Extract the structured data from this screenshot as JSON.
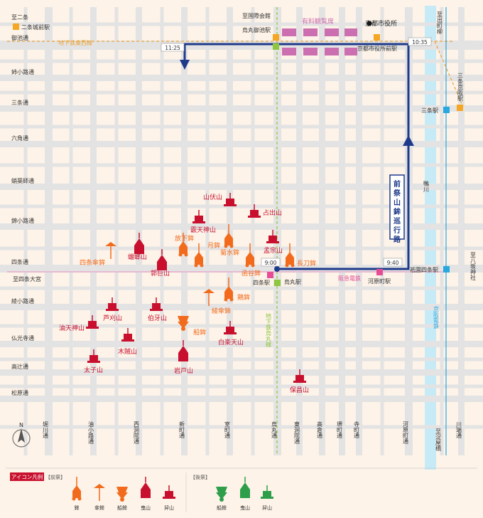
{
  "title": "前祭山鉾巡行路",
  "colors": {
    "background": "#fdf3e8",
    "street": "#e3e3e3",
    "route": "#1e3a8a",
    "river": "#c7eaf7",
    "hoko": "#f26b1d",
    "yama": "#c8102e",
    "ato": "#2e9e4a",
    "subway": "#e8a33d",
    "karasuma_line": "#8dc63f",
    "hankyu": "#e9a0c4",
    "gallery": "#cc6fb0"
  },
  "streets_horizontal": [
    "御池通",
    "姉小路通",
    "三条通",
    "六角通",
    "蛸薬師通",
    "錦小路通",
    "四条通",
    "綾小路通",
    "仏光寺通",
    "高辻通",
    "松原通"
  ],
  "streets_vertical": [
    "堀川通",
    "油小路通",
    "西洞院通",
    "新町通",
    "室町通",
    "烏丸通",
    "東洞院通",
    "高倉通",
    "堺町通",
    "寺町通",
    "河原町通",
    "川端通"
  ],
  "street_notes": {
    "shijo_omiya": "至四条大宮",
    "kamogawa": "鴨川",
    "to_kokusai": "至国際会館"
  },
  "stations": {
    "nijo_top": "至二条",
    "nijojo": "二条城前駅",
    "tozai_line": "地下鉄東西線",
    "karasuma_oike": "烏丸御池駅",
    "kyoto_city_hall": "京都市役所",
    "shiyakusho_mae": "京都市役所前駅",
    "demachi": "至出町柳",
    "sanjo_keihan": "三条京阪駅",
    "sanjo": "三条駅",
    "shijo": "四条駅",
    "karasuma": "烏丸駅",
    "hankyu": "阪急電鉄",
    "kawaramachi": "河原町駅",
    "gion_shijo": "祇園四条駅",
    "keihan": "京阪電鉄",
    "yasaka": "至八坂神社",
    "karasuma_line": "地下鉄烏丸線",
    "yodoyabashi": "至淀屋橋"
  },
  "paid_seats": "有料観覧席",
  "route_times": {
    "start": "9:00",
    "kawaramachi": "9:40",
    "kyoto_hall": "10:35",
    "shinmachi_oike": "11:25"
  },
  "floats": {
    "hoko": [
      "長刀鉾",
      "函谷鉾",
      "菊水鉾",
      "月鉾",
      "鶏鉾",
      "放下鉾",
      "船鉾"
    ],
    "kasa": [
      "四条傘鉾",
      "綾傘鉾"
    ],
    "yama": [
      "孟宗山",
      "占出山",
      "山伏山",
      "霰天神山",
      "蟷螂山",
      "郭巨山",
      "白楽天山",
      "伯牙山",
      "芦刈山",
      "油天神山",
      "木賊山",
      "太子山",
      "保昌山",
      "岩戸山"
    ]
  },
  "legend": {
    "title": "アイコン凡例",
    "saki_label": "【前祭】",
    "ato_label": "【後祭】",
    "items": [
      "鉾",
      "傘鉾",
      "船鉾",
      "曳山",
      "舁山"
    ]
  }
}
